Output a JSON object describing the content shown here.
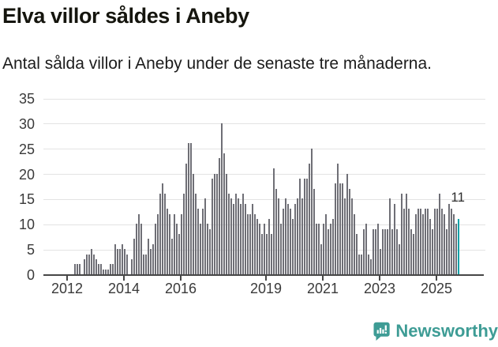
{
  "header": {
    "title": "Elva villor såldes i Aneby",
    "subtitle": "Antal sålda villor i Aneby under de senaste tre månaderna."
  },
  "chart_data": {
    "type": "bar",
    "title": "Elva villor såldes i Aneby",
    "subtitle": "Antal sålda villor i Aneby under de senaste tre månaderna.",
    "x_unit": "month",
    "x_start": "2012-04",
    "x_end": "2025-10",
    "ylim": [
      0,
      35
    ],
    "y_ticks": [
      0,
      5,
      10,
      15,
      20,
      25,
      30,
      35
    ],
    "x_ticks": [
      {
        "label": "2012",
        "month_offset": 0
      },
      {
        "label": "2014",
        "month_offset": 24
      },
      {
        "label": "2016",
        "month_offset": 48
      },
      {
        "label": "2019",
        "month_offset": 84
      },
      {
        "label": "2021",
        "month_offset": 108
      },
      {
        "label": "2023",
        "month_offset": 132
      },
      {
        "label": "2025",
        "month_offset": 156
      }
    ],
    "grid": "horizontal",
    "legend": "none",
    "bar_color": "#6f6f76",
    "highlight_color": "#00a0a6",
    "highlight_index": 162,
    "highlight_label": "11",
    "series_start_month_offset": 3,
    "values": [
      2,
      2,
      2,
      0,
      3,
      4,
      4,
      5,
      4,
      3,
      2,
      2,
      1,
      1,
      1,
      2,
      2,
      6,
      5,
      5,
      6,
      5,
      4,
      0,
      3,
      7,
      10,
      12,
      10,
      4,
      4,
      7,
      5,
      6,
      10,
      12,
      16,
      18,
      16,
      13,
      12,
      7,
      12,
      10,
      8,
      12,
      16,
      22,
      26,
      26,
      20,
      16,
      13,
      10,
      13,
      15,
      10,
      9,
      19,
      20,
      20,
      23,
      30,
      24,
      20,
      16,
      15,
      14,
      16,
      15,
      14,
      16,
      14,
      12,
      12,
      14,
      12,
      11,
      10,
      8,
      10,
      8,
      11,
      8,
      21,
      17,
      15,
      10,
      13,
      15,
      14,
      13,
      11,
      14,
      15,
      19,
      15,
      19,
      19,
      22,
      25,
      17,
      10,
      10,
      6,
      10,
      12,
      9,
      10,
      11,
      18,
      22,
      18,
      18,
      15,
      20,
      17,
      15,
      12,
      8,
      4,
      4,
      9,
      10,
      4,
      3,
      9,
      9,
      10,
      5,
      9,
      9,
      9,
      15,
      9,
      14,
      9,
      6,
      16,
      13,
      16,
      13,
      9,
      8,
      12,
      13,
      13,
      12,
      13,
      13,
      11,
      9,
      13,
      13,
      16,
      13,
      12,
      9,
      14,
      13,
      12,
      10,
      11
    ]
  },
  "footer": {
    "brand_name": "Newsworthy",
    "logo_icon": "newsworthy-speech-bubble-chart-icon",
    "brand_color": "#3e9c95"
  }
}
